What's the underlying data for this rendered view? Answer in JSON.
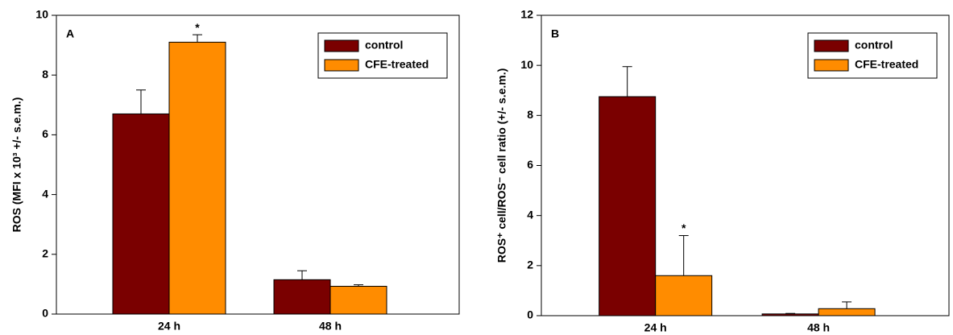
{
  "chart_data": [
    {
      "type": "bar",
      "panel_label": "A",
      "ylabel": "ROS (MFI x 10³ +/- s.e.m.)",
      "categories": [
        "24 h",
        "48 h"
      ],
      "series": [
        {
          "name": "control",
          "color": "#7a0000",
          "values": [
            6.7,
            1.15
          ],
          "errors": [
            0.8,
            0.3
          ]
        },
        {
          "name": "CFE-treated",
          "color": "#ff8c00",
          "values": [
            9.1,
            0.93
          ],
          "errors": [
            0.25,
            0.05
          ]
        }
      ],
      "annotations": [
        "*"
      ],
      "ylim": [
        0,
        10
      ],
      "yticks": [
        0,
        2,
        4,
        6,
        8,
        10
      ],
      "legend": "upper right"
    },
    {
      "type": "bar",
      "panel_label": "B",
      "ylabel": "ROS⁺ cell/ROS⁻ cell ratio (+/- s.e.m.)",
      "categories": [
        "24 h",
        "48 h"
      ],
      "series": [
        {
          "name": "control",
          "color": "#7a0000",
          "values": [
            8.75,
            0.07
          ],
          "errors": [
            1.2,
            0.02
          ]
        },
        {
          "name": "CFE-treated",
          "color": "#ff8c00",
          "values": [
            1.6,
            0.28
          ],
          "errors": [
            1.6,
            0.27
          ]
        }
      ],
      "annotations": [
        "*"
      ],
      "ylim": [
        0,
        12
      ],
      "yticks": [
        0,
        2,
        4,
        6,
        8,
        10,
        12
      ],
      "legend": "upper right"
    }
  ]
}
